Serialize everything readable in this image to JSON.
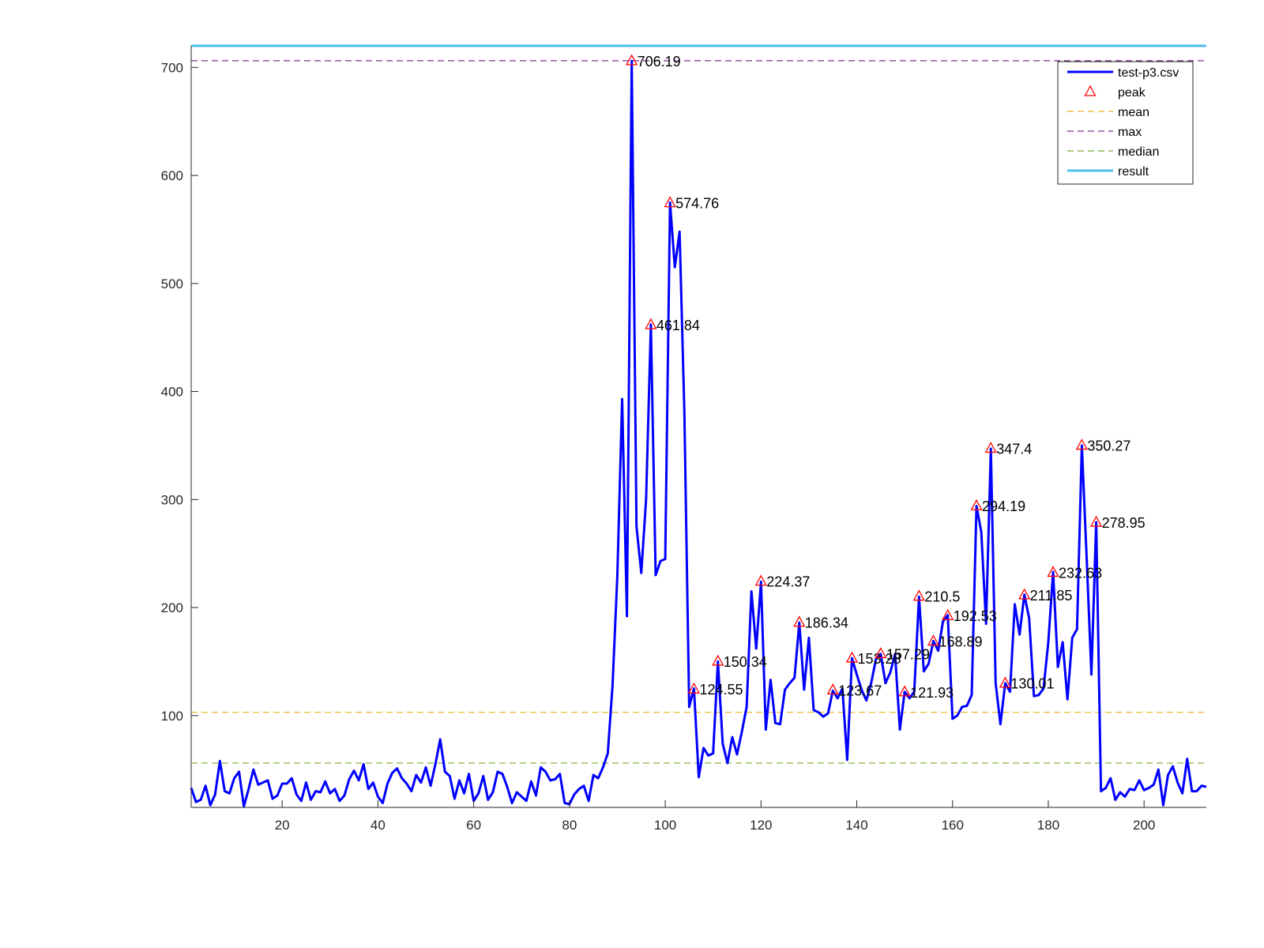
{
  "chart_data": {
    "type": "line",
    "title": "",
    "xlabel": "",
    "ylabel": "",
    "xlim": [
      1,
      213
    ],
    "ylim": [
      15,
      720
    ],
    "xticks": [
      20,
      40,
      60,
      80,
      100,
      120,
      140,
      160,
      180,
      200
    ],
    "yticks": [
      100,
      200,
      300,
      400,
      500,
      600,
      700
    ],
    "grid": false,
    "legend_position": "top-right",
    "colors": {
      "signal": "#0000ff",
      "peak": "#ff0000",
      "mean": "#edb120",
      "max": "#7e2f8e",
      "median": "#77ac30",
      "result": "#4dbeee",
      "axis": "#262626"
    },
    "series": [
      {
        "name": "test-p3.csv",
        "x": [
          1,
          2,
          3,
          4,
          5,
          6,
          7,
          8,
          9,
          10,
          11,
          12,
          13,
          14,
          15,
          16,
          17,
          18,
          19,
          20,
          21,
          22,
          23,
          24,
          25,
          26,
          27,
          28,
          29,
          30,
          31,
          32,
          33,
          34,
          35,
          36,
          37,
          38,
          39,
          40,
          41,
          42,
          43,
          44,
          45,
          46,
          47,
          48,
          49,
          50,
          51,
          52,
          53,
          54,
          55,
          56,
          57,
          58,
          59,
          60,
          61,
          62,
          63,
          64,
          65,
          66,
          67,
          68,
          69,
          70,
          71,
          72,
          73,
          74,
          75,
          76,
          77,
          78,
          79,
          80,
          81,
          82,
          83,
          84,
          85,
          86,
          87,
          88,
          89,
          90,
          91,
          92,
          93,
          94,
          95,
          96,
          97,
          98,
          99,
          100,
          101,
          102,
          103,
          104,
          105,
          106,
          107,
          108,
          109,
          110,
          111,
          112,
          113,
          114,
          115,
          116,
          117,
          118,
          119,
          120,
          121,
          122,
          123,
          124,
          125,
          126,
          127,
          128,
          129,
          130,
          131,
          132,
          133,
          134,
          135,
          136,
          137,
          138,
          139,
          140,
          141,
          142,
          143,
          144,
          145,
          146,
          147,
          148,
          149,
          150,
          151,
          152,
          153,
          154,
          155,
          156,
          157,
          158,
          159,
          160,
          161,
          162,
          163,
          164,
          165,
          166,
          167,
          168,
          169,
          170,
          171,
          172,
          173,
          174,
          175,
          176,
          177,
          178,
          179,
          180,
          181,
          182,
          183,
          184,
          185,
          186,
          187,
          188,
          189,
          190,
          191,
          192,
          193,
          194,
          195,
          196,
          197,
          198,
          199,
          200,
          201,
          202,
          203,
          204,
          205,
          206,
          207,
          208,
          209,
          210,
          211,
          212,
          213
        ],
        "y": [
          33,
          20,
          22,
          35,
          17,
          27,
          58,
          30,
          28,
          42,
          48,
          16,
          32,
          50,
          36,
          38,
          40,
          23,
          26,
          37,
          37,
          42,
          27,
          21,
          38,
          22,
          30,
          29,
          39,
          28,
          32,
          21,
          26,
          41,
          49,
          40,
          55,
          32,
          38,
          25,
          19,
          37,
          47,
          51,
          42,
          37,
          30,
          45,
          38,
          52,
          35,
          55,
          78,
          48,
          44,
          23,
          40,
          28,
          46,
          21,
          28,
          44,
          22,
          29,
          48,
          46,
          34,
          19,
          29,
          25,
          21,
          39,
          26,
          52,
          48,
          40,
          41,
          46,
          19,
          18,
          27,
          32,
          35,
          21,
          45,
          42,
          52,
          65,
          128,
          230,
          393,
          192,
          706,
          275,
          232,
          300,
          462,
          230,
          243,
          245,
          575,
          515,
          548,
          380,
          108,
          125,
          43,
          70,
          63,
          65,
          150,
          74,
          56,
          80,
          64,
          85,
          108,
          215,
          162,
          224,
          87,
          133,
          93,
          92,
          124,
          130,
          135,
          186,
          124,
          172,
          105,
          103,
          99,
          102,
          123,
          116,
          125,
          59,
          153,
          138,
          124,
          114,
          130,
          152,
          157,
          130,
          140,
          157,
          87,
          122,
          116,
          122,
          210,
          141,
          148,
          169,
          160,
          187,
          193,
          97,
          100,
          108,
          109,
          119,
          294,
          270,
          185,
          347,
          130,
          92,
          130,
          122,
          203,
          175,
          212,
          190,
          118,
          119,
          125,
          168,
          233,
          145,
          168,
          115,
          172,
          180,
          350,
          247,
          138,
          279,
          30,
          33,
          42,
          22,
          29,
          25,
          32,
          31,
          40,
          31,
          33,
          36,
          50,
          17,
          45,
          53,
          38,
          28,
          60,
          30,
          30,
          35,
          34
        ]
      }
    ],
    "peaks": [
      {
        "x": 93,
        "y": 706.19,
        "label": "706.19"
      },
      {
        "x": 101,
        "y": 574.76,
        "label": "574.76"
      },
      {
        "x": 97,
        "y": 461.84,
        "label": "461.84"
      },
      {
        "x": 106,
        "y": 124.55,
        "label": "124.55"
      },
      {
        "x": 111,
        "y": 150.34,
        "label": "150.34"
      },
      {
        "x": 120,
        "y": 224.37,
        "label": "224.37"
      },
      {
        "x": 128,
        "y": 186.34,
        "label": "186.34"
      },
      {
        "x": 135,
        "y": 123.67,
        "label": "123.67"
      },
      {
        "x": 139,
        "y": 153.28,
        "label": "153.28"
      },
      {
        "x": 145,
        "y": 157.29,
        "label": "157.29"
      },
      {
        "x": 150,
        "y": 121.93,
        "label": "121.93"
      },
      {
        "x": 153,
        "y": 210.5,
        "label": "210.5"
      },
      {
        "x": 156,
        "y": 168.89,
        "label": "168.89"
      },
      {
        "x": 159,
        "y": 192.53,
        "label": "192.53"
      },
      {
        "x": 165,
        "y": 294.19,
        "label": "294.19"
      },
      {
        "x": 168,
        "y": 347.4,
        "label": "347.4"
      },
      {
        "x": 171,
        "y": 130.01,
        "label": "130.01"
      },
      {
        "x": 175,
        "y": 211.85,
        "label": "211.85"
      },
      {
        "x": 181,
        "y": 232.63,
        "label": "232.63"
      },
      {
        "x": 187,
        "y": 350.27,
        "label": "350.27"
      },
      {
        "x": 190,
        "y": 278.95,
        "label": "278.95"
      }
    ],
    "reference_lines": [
      {
        "name": "mean",
        "y": 103,
        "style": "dashed"
      },
      {
        "name": "max",
        "y": 706.19,
        "style": "dashed"
      },
      {
        "name": "median",
        "y": 56,
        "style": "dashed"
      },
      {
        "name": "result",
        "y": 720,
        "style": "solid"
      }
    ],
    "legend": [
      {
        "label": "test-p3.csv",
        "kind": "line",
        "color_key": "signal"
      },
      {
        "label": "peak",
        "kind": "triangle",
        "color_key": "peak"
      },
      {
        "label": "mean",
        "kind": "dashed",
        "color_key": "mean"
      },
      {
        "label": "max",
        "kind": "dashed",
        "color_key": "max"
      },
      {
        "label": "median",
        "kind": "dashed",
        "color_key": "median"
      },
      {
        "label": "result",
        "kind": "thick",
        "color_key": "result"
      }
    ]
  }
}
